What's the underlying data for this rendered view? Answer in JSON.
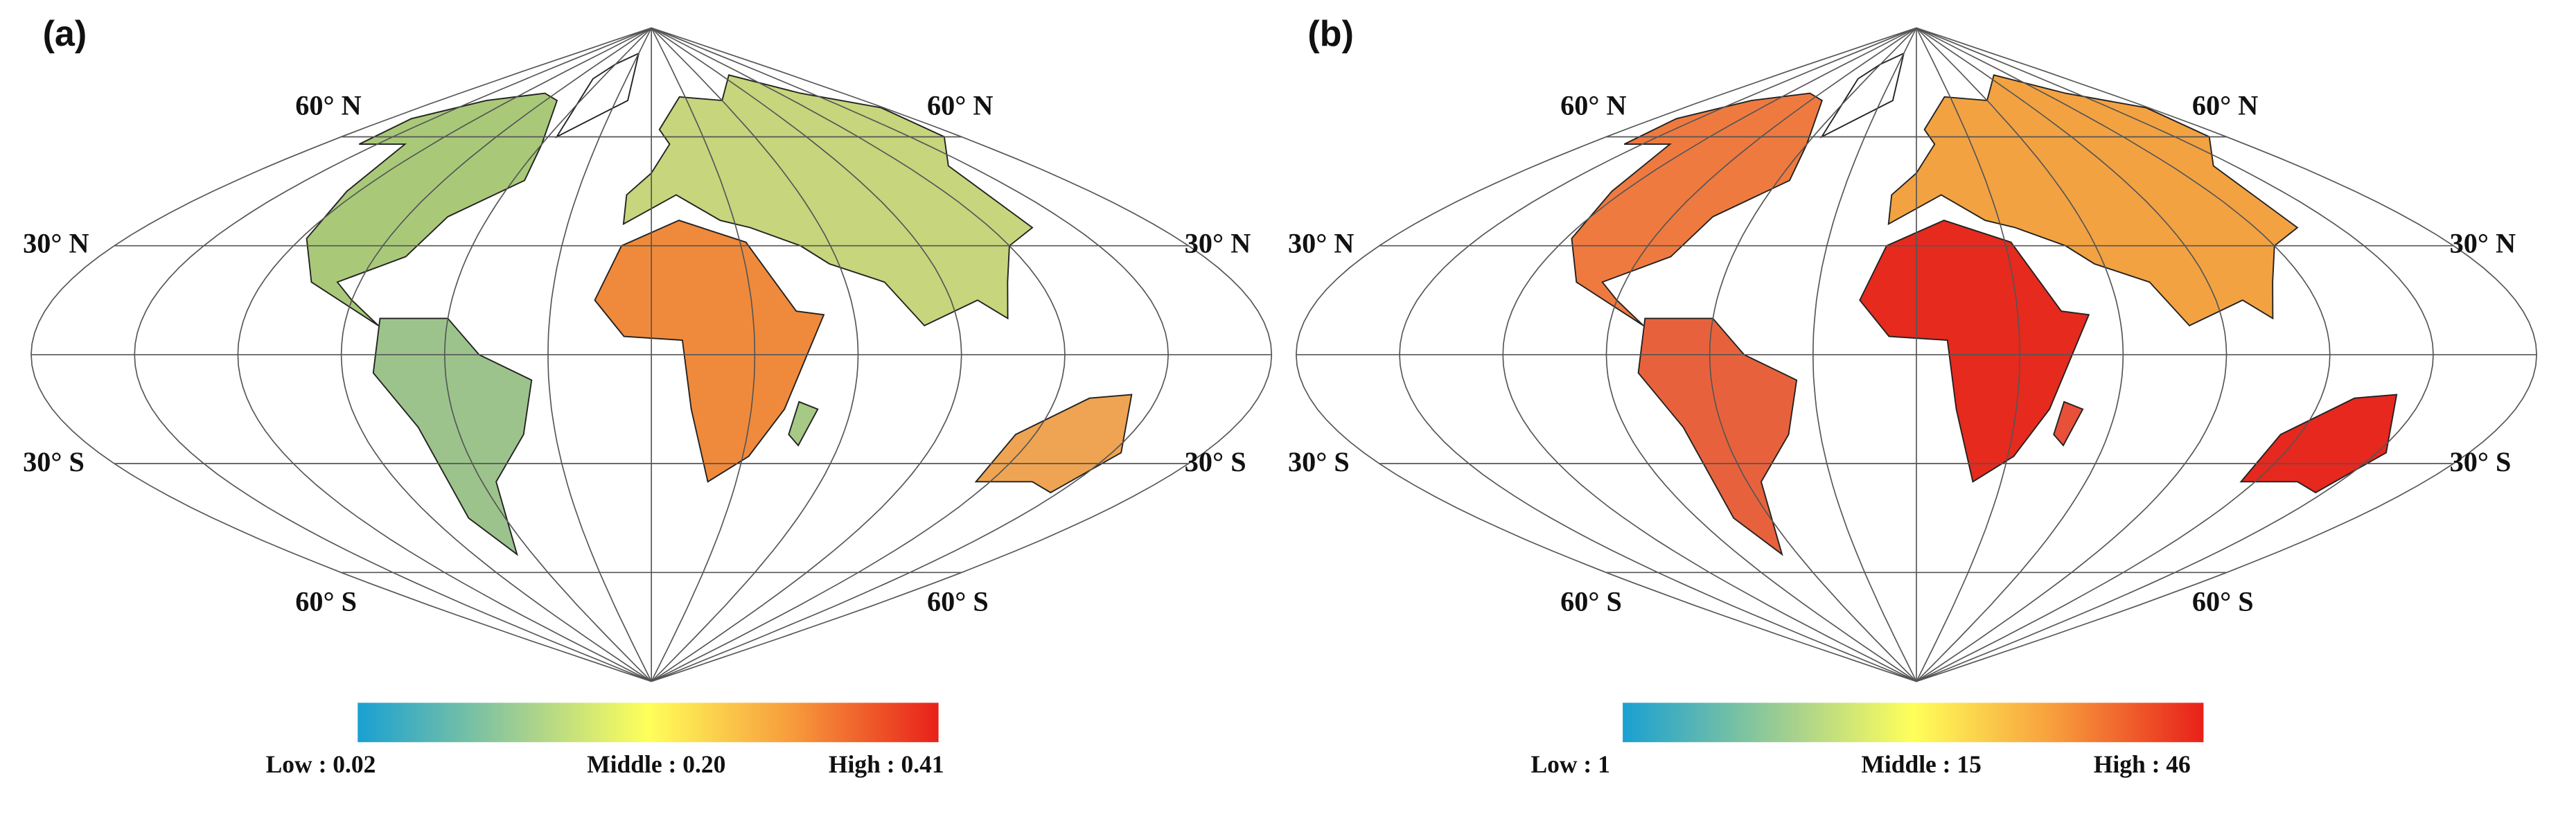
{
  "panels": [
    {
      "label": "(a)",
      "lat_labels": {
        "n60": "60° N",
        "n30": "30° N",
        "s30": "30° S",
        "s60": "60° S"
      },
      "legend": {
        "low": "Low : 0.02",
        "middle": "Middle : 0.20",
        "high": "High : 0.41"
      }
    },
    {
      "label": "(b)",
      "lat_labels": {
        "n60": "60° N",
        "n30": "30° N",
        "s30": "30° S",
        "s60": "60° S"
      },
      "legend": {
        "low": "Low : 1",
        "middle": "Middle : 15",
        "high": "High : 46"
      }
    }
  ]
}
